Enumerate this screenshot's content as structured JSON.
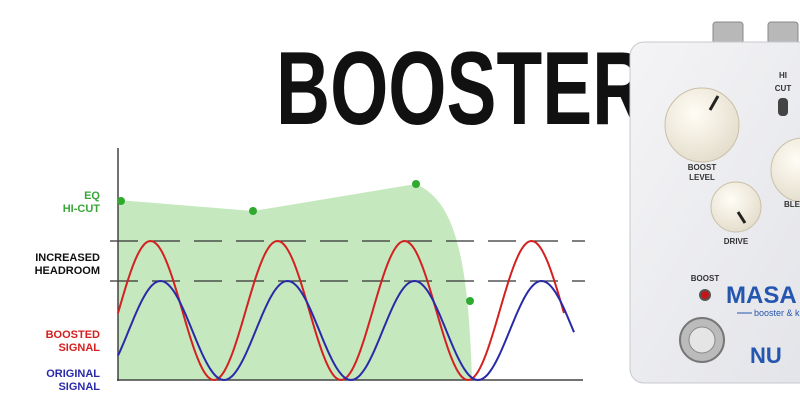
{
  "title": "BOOSTER",
  "graph_labels": {
    "eq_hicut": [
      "EQ",
      "HI-CUT"
    ],
    "headroom": [
      "INCREASED",
      "HEADROOM"
    ],
    "boosted": [
      "BOOSTED",
      "SIGNAL"
    ],
    "original": [
      "ORIGINAL",
      "SIGNAL"
    ]
  },
  "pedal": {
    "hi_cut": [
      "HI",
      "CUT"
    ],
    "boost_level": [
      "BOOST",
      "LEVEL"
    ],
    "blend": "BLE",
    "drive": "DRIVE",
    "boost": "BOOST",
    "brand": "MASA",
    "tagline": "booster & k",
    "logo": "NU"
  }
}
